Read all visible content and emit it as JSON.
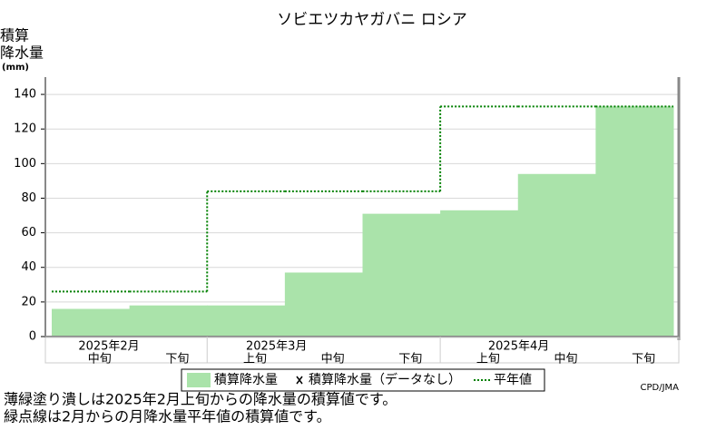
{
  "chart_data": {
    "type": "step-area",
    "title": "ソビエツカヤガバニ ロシア",
    "ylabel": [
      "積算",
      "降水量",
      "(mm)"
    ],
    "categories": [
      "中旬",
      "下旬",
      "上旬",
      "中旬",
      "下旬",
      "上旬",
      "中旬",
      "下旬"
    ],
    "month_labels": [
      "2025年2月",
      "2025年3月",
      "2025年4月"
    ],
    "series": [
      {
        "name": "積算降水量",
        "color": "#aae3aa",
        "values": [
          16,
          18,
          18,
          37,
          71,
          73,
          94,
          133
        ]
      },
      {
        "name": "積算降水量（データなし）",
        "color": "#000000",
        "values": [
          null,
          null,
          null,
          null,
          null,
          null,
          null,
          null
        ]
      },
      {
        "name": "平年値",
        "color": "#008000",
        "values": [
          26,
          26,
          84,
          84,
          84,
          133,
          133,
          133
        ]
      }
    ],
    "ylim": [
      0,
      150
    ],
    "yticks": [
      0,
      20,
      40,
      60,
      80,
      100,
      120,
      140
    ],
    "grid": true,
    "credit": "CPD/JMA",
    "notes": [
      "薄緑塗り潰しは2025年2月上旬からの降水量の積算値です。",
      "緑点線は2月からの月降水量平年値の積算値です。"
    ]
  }
}
